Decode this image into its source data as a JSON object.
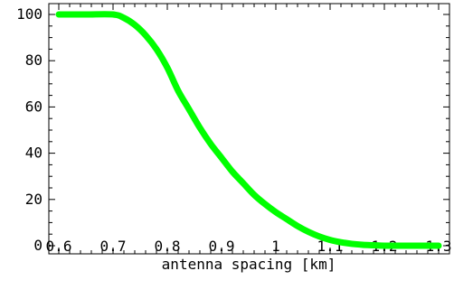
{
  "chart_data": {
    "type": "line",
    "title": "",
    "xlabel": "antenna spacing [km]",
    "ylabel": "",
    "xlim": [
      0.6,
      1.3
    ],
    "ylim": [
      0,
      100
    ],
    "grid": false,
    "x_ticks": [
      0.6,
      0.7,
      0.8,
      0.9,
      1.0,
      1.1,
      1.2,
      1.3
    ],
    "x_tick_labels": [
      "0.6",
      "0.7",
      "0.8",
      "0.9",
      "1",
      "1.1",
      "1.2",
      "1.3"
    ],
    "y_ticks": [
      0,
      20,
      40,
      60,
      80,
      100
    ],
    "y_tick_labels": [
      "0",
      "20",
      "40",
      "60",
      "80",
      "100"
    ],
    "series": [
      {
        "color": "#00ff00",
        "x": [
          0.6,
          0.65,
          0.7,
          0.72,
          0.74,
          0.76,
          0.78,
          0.8,
          0.82,
          0.84,
          0.86,
          0.88,
          0.9,
          0.92,
          0.94,
          0.96,
          0.98,
          1.0,
          1.02,
          1.04,
          1.06,
          1.08,
          1.1,
          1.12,
          1.14,
          1.16,
          1.18,
          1.2,
          1.25,
          1.3
        ],
        "y": [
          100,
          100,
          100,
          98.5,
          95.5,
          91,
          85,
          77,
          67,
          59,
          51,
          44,
          38,
          32,
          27,
          22,
          18,
          14.5,
          11.5,
          8.5,
          6,
          4,
          2.5,
          1.5,
          0.8,
          0.4,
          0.2,
          0,
          0,
          0
        ]
      }
    ]
  }
}
